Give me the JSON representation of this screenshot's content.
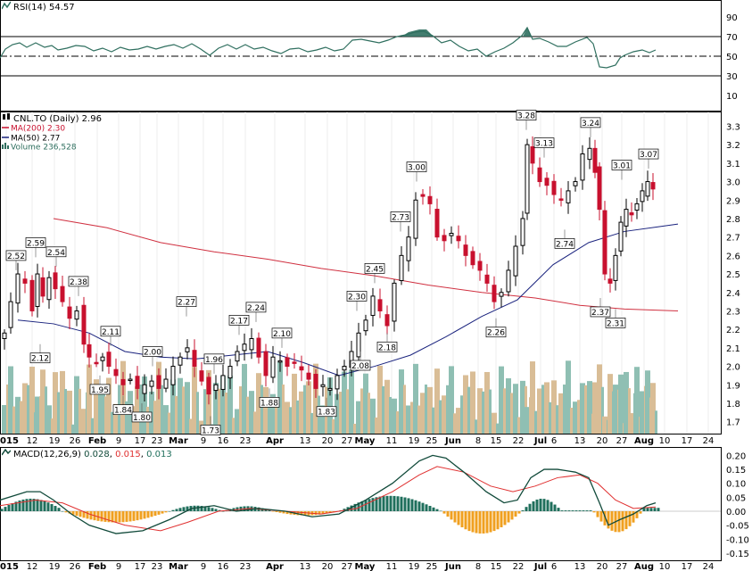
{
  "rsi": {
    "label": "RSI(14)",
    "value": "54.57",
    "levels": [
      "90",
      "70",
      "50",
      "30",
      "10"
    ]
  },
  "price": {
    "title": "CNL.TO (Daily)",
    "last": "2.96",
    "ma200_label": "MA(200)",
    "ma200_value": "2.30",
    "ma50_label": "MA(50)",
    "ma50_value": "2.77",
    "volume_label": "Volume",
    "volume_value": "236,528",
    "yticks": [
      "3.3",
      "3.2",
      "3.1",
      "3.0",
      "2.9",
      "2.8",
      "2.7",
      "2.6",
      "2.5",
      "2.4",
      "2.3",
      "2.2",
      "2.1",
      "2.0",
      "1.9",
      "1.8",
      "1.7"
    ]
  },
  "macd": {
    "label": "MACD(12,26,9)",
    "v1": "0.028",
    "v2": "0.015",
    "v3": "0.013",
    "yticks": [
      "0.20",
      "0.15",
      "0.10",
      "0.05",
      "0.00",
      "-0.05",
      "-0.10",
      "-0.15"
    ]
  },
  "xaxis": {
    "labels": [
      "2015",
      "12",
      "19",
      "26",
      "Feb",
      "9",
      "17",
      "23",
      "Mar",
      "9",
      "16",
      "23",
      "Apr",
      "13",
      "20",
      "27",
      "May",
      "11",
      "19",
      "25",
      "Jun",
      "8",
      "15",
      "22",
      "Jul",
      "6",
      "13",
      "20",
      "27",
      "Aug",
      "10",
      "17",
      "24"
    ]
  },
  "colors": {
    "up": "#000000",
    "down": "#c8102e",
    "ma200": "#d03040",
    "ma50": "#1a237e",
    "rsi": "#2f6f5f",
    "vol_up": "#8fbfb3",
    "vol_down": "#d9bd96",
    "macd_line": "#114a3a",
    "signal": "#e03030",
    "hist_pos": "#1f6f5c",
    "hist_neg": "#f0a020"
  },
  "chart_data": [
    {
      "type": "candlestick",
      "title": "CNL.TO (Daily)",
      "y_range": [
        1.65,
        3.35
      ],
      "ma200_last": 2.3,
      "ma50_last": 2.77,
      "last_volume": 236528,
      "annotations": [
        {
          "label": "2.52",
          "value": 2.52
        },
        {
          "label": "2.59",
          "value": 2.59
        },
        {
          "label": "2.12",
          "value": 2.12
        },
        {
          "label": "2.54",
          "value": 2.54
        },
        {
          "label": "2.38",
          "value": 2.38
        },
        {
          "label": "1.95",
          "value": 1.95
        },
        {
          "label": "2.11",
          "value": 2.11
        },
        {
          "label": "1.84",
          "value": 1.84
        },
        {
          "label": "2.00",
          "value": 2.0
        },
        {
          "label": "1.80",
          "value": 1.8
        },
        {
          "label": "2.27",
          "value": 2.27
        },
        {
          "label": "1.96",
          "value": 1.96
        },
        {
          "label": "1.73",
          "value": 1.73
        },
        {
          "label": "2.17",
          "value": 2.17
        },
        {
          "label": "2.24",
          "value": 2.24
        },
        {
          "label": "1.88",
          "value": 1.88
        },
        {
          "label": "2.10",
          "value": 2.1
        },
        {
          "label": "1.83",
          "value": 1.83
        },
        {
          "label": "2.30",
          "value": 2.3
        },
        {
          "label": "2.08",
          "value": 2.08
        },
        {
          "label": "2.45",
          "value": 2.45
        },
        {
          "label": "2.18",
          "value": 2.18
        },
        {
          "label": "2.73",
          "value": 2.73
        },
        {
          "label": "3.00",
          "value": 3.0
        },
        {
          "label": "2.26",
          "value": 2.26
        },
        {
          "label": "3.28",
          "value": 3.28
        },
        {
          "label": "3.13",
          "value": 3.13
        },
        {
          "label": "2.74",
          "value": 2.74
        },
        {
          "label": "3.24",
          "value": 3.24
        },
        {
          "label": "3.01",
          "value": 3.01
        },
        {
          "label": "2.37",
          "value": 2.37
        },
        {
          "label": "2.31",
          "value": 2.31
        },
        {
          "label": "3.07",
          "value": 3.07
        }
      ]
    },
    {
      "type": "line",
      "title": "RSI(14)",
      "last": 54.57,
      "y_range": [
        0,
        100
      ],
      "levels": [
        30,
        50,
        70
      ]
    },
    {
      "type": "line",
      "title": "MACD(12,26,9)",
      "macd": 0.028,
      "signal": 0.015,
      "histogram": 0.013,
      "y_range": [
        -0.17,
        0.21
      ]
    }
  ]
}
